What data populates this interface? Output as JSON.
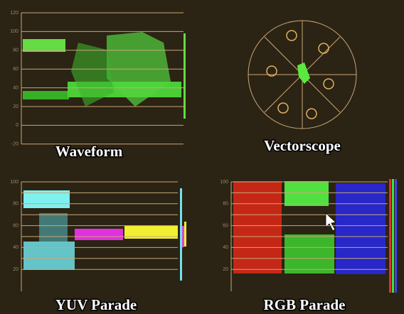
{
  "waveform": {
    "title": "Waveform",
    "scale": [
      120,
      100,
      80,
      60,
      40,
      20,
      0,
      -20
    ]
  },
  "vectorscope": {
    "title": "Vectorscope"
  },
  "yuv_parade": {
    "title": "YUV Parade",
    "scale": [
      100,
      80,
      60,
      40,
      20
    ]
  },
  "rgb_parade": {
    "title": "RGB Parade",
    "scale": [
      100,
      80,
      60,
      40,
      20
    ]
  }
}
